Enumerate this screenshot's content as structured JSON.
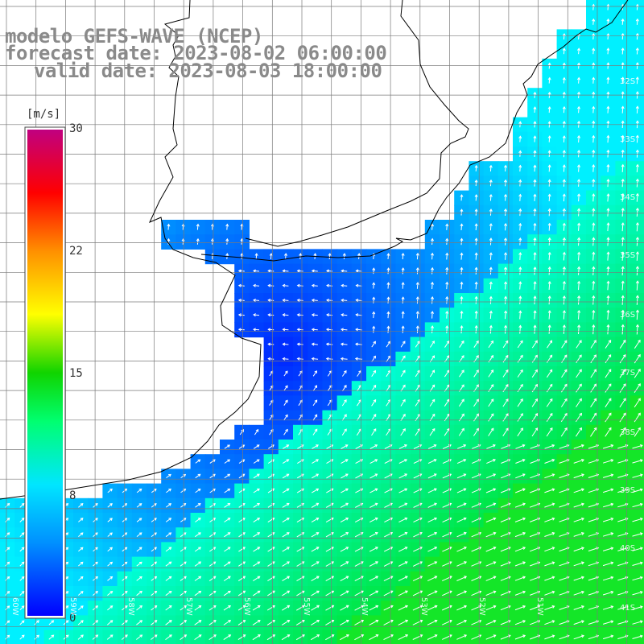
{
  "title": {
    "model": "modelo GEFS-WAVE (NCEP)",
    "forecast": "forecast date: 2023-08-02 06:00:00",
    "valid": "valid date: 2023-08-03 18:00:00"
  },
  "colorbar": {
    "unit": "[m/s]",
    "ticks": [
      "30",
      "22",
      "15",
      "8",
      "0"
    ],
    "colors": [
      "#0000ff",
      "#0090ff",
      "#00e6ff",
      "#00ff70",
      "#10d400",
      "#ffff00",
      "#ff9000",
      "#ff0000",
      "#c00080"
    ]
  },
  "lat_labels": [
    "32S",
    "33S",
    "34S",
    "35S",
    "36S",
    "37S",
    "38S",
    "39S",
    "40S",
    "41S"
  ],
  "lon_labels": [
    "60W",
    "59W",
    "58W",
    "57W",
    "56W",
    "55W",
    "54W",
    "53W",
    "52W",
    "51W"
  ],
  "colors": {
    "land": "#ffffff",
    "coast": "#000000",
    "grid": "#7a7a7a",
    "arrow": "#ffffff"
  }
}
